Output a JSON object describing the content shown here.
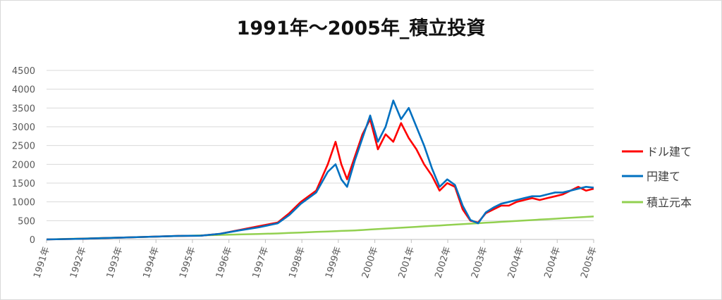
{
  "chart_data": {
    "type": "line",
    "title": "1991年～2005年_積立投資",
    "xlabel": "",
    "ylabel": "",
    "ylim": [
      0,
      4500
    ],
    "yticks": [
      0,
      500,
      1000,
      1500,
      2000,
      2500,
      3000,
      3500,
      4000,
      4500
    ],
    "x_tick_labels": [
      "1991年",
      "1992年",
      "1993年",
      "1994年",
      "1995年",
      "1996年",
      "1997年",
      "1998年",
      "1999年",
      "2000年",
      "2001年",
      "2002年",
      "2003年",
      "2004年",
      "2004年",
      "2005年"
    ],
    "grid": "horizontal",
    "legend_position": "right",
    "x_points": [
      1991.0,
      1991.5,
      1992.0,
      1992.5,
      1993.0,
      1993.5,
      1994.0,
      1994.5,
      1995.0,
      1995.5,
      1996.0,
      1996.5,
      1997.0,
      1997.3,
      1997.6,
      1998.0,
      1998.3,
      1998.5,
      1998.65,
      1998.8,
      1999.0,
      1999.2,
      1999.4,
      1999.6,
      1999.8,
      2000.0,
      2000.2,
      2000.4,
      2000.6,
      2000.8,
      2001.0,
      2001.2,
      2001.4,
      2001.6,
      2001.8,
      2002.0,
      2002.2,
      2002.4,
      2002.6,
      2002.8,
      2003.0,
      2003.2,
      2003.4,
      2003.6,
      2003.8,
      2004.0,
      2004.2,
      2004.4,
      2004.6,
      2004.8,
      2005.0,
      2005.2
    ],
    "series": [
      {
        "name": "ドル建て",
        "color": "#ff0000",
        "values": [
          0,
          10,
          20,
          35,
          50,
          65,
          80,
          95,
          100,
          150,
          250,
          350,
          450,
          700,
          1000,
          1300,
          2000,
          2600,
          2000,
          1600,
          2200,
          2800,
          3200,
          2400,
          2800,
          2600,
          3100,
          2700,
          2400,
          2000,
          1700,
          1300,
          1500,
          1400,
          800,
          500,
          450,
          700,
          800,
          900,
          900,
          1000,
          1050,
          1100,
          1050,
          1100,
          1150,
          1200,
          1300,
          1400,
          1300,
          1350
        ]
      },
      {
        "name": "円建て",
        "color": "#0070c0",
        "values": [
          0,
          10,
          20,
          35,
          50,
          65,
          80,
          95,
          100,
          150,
          240,
          320,
          430,
          650,
          950,
          1250,
          1800,
          2000,
          1600,
          1400,
          2100,
          2700,
          3300,
          2600,
          3000,
          3700,
          3200,
          3500,
          3000,
          2500,
          1900,
          1400,
          1600,
          1450,
          900,
          520,
          430,
          720,
          850,
          950,
          1000,
          1050,
          1100,
          1150,
          1150,
          1200,
          1250,
          1250,
          1300,
          1350,
          1400,
          1380
        ]
      },
      {
        "name": "積立元本",
        "color": "#92d050",
        "values": [
          0,
          13,
          26,
          40,
          53,
          66,
          80,
          93,
          106,
          120,
          133,
          146,
          160,
          172,
          184,
          200,
          212,
          220,
          226,
          232,
          240,
          252,
          264,
          276,
          288,
          300,
          312,
          324,
          336,
          348,
          360,
          372,
          384,
          396,
          408,
          420,
          432,
          444,
          456,
          468,
          480,
          492,
          504,
          516,
          528,
          540,
          552,
          564,
          576,
          588,
          600,
          612
        ]
      }
    ]
  }
}
